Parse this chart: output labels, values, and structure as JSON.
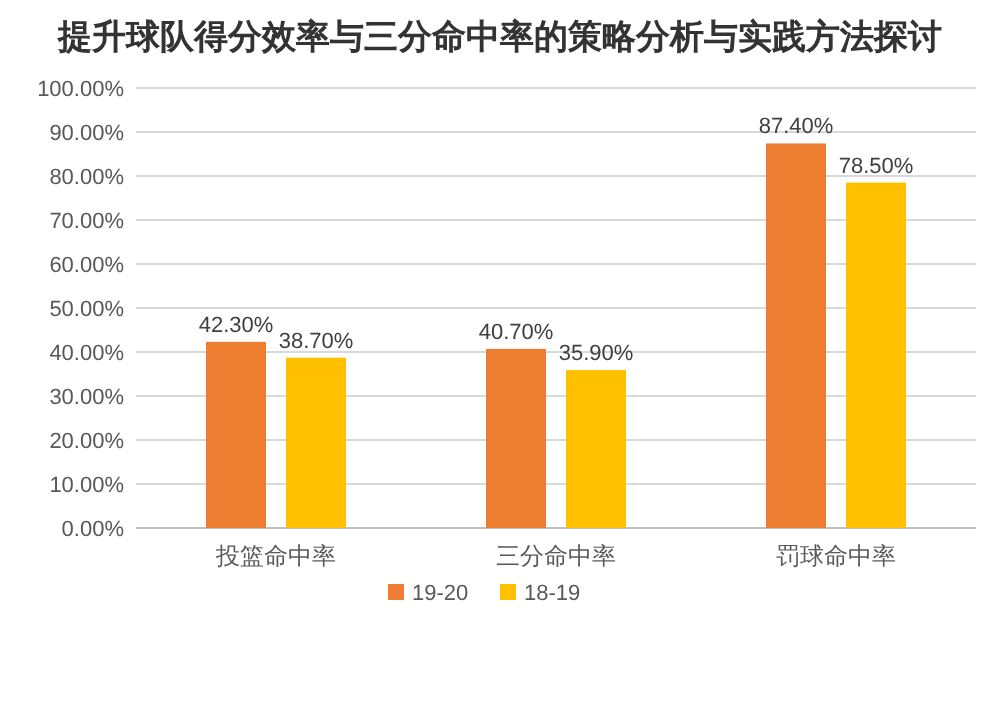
{
  "chart_data": {
    "type": "bar",
    "title": "提升球队得分效率与三分命中率的策略分析与实践方法探讨",
    "categories": [
      "投篮命中率",
      "三分命中率",
      "罚球命中率"
    ],
    "series": [
      {
        "name": "19-20",
        "color": "#ed7d31",
        "values": [
          42.3,
          40.7,
          87.4
        ],
        "value_labels": [
          "42.30%",
          "40.70%",
          "87.40%"
        ]
      },
      {
        "name": "18-19",
        "color": "#ffc000",
        "values": [
          38.7,
          35.9,
          78.5
        ],
        "value_labels": [
          "38.70%",
          "35.90%",
          "78.50%"
        ]
      }
    ],
    "ylim": [
      0,
      100
    ],
    "yticks": [
      {
        "value": 0,
        "label": "0.00%"
      },
      {
        "value": 10,
        "label": "10.00%"
      },
      {
        "value": 20,
        "label": "20.00%"
      },
      {
        "value": 30,
        "label": "30.00%"
      },
      {
        "value": 40,
        "label": "40.00%"
      },
      {
        "value": 50,
        "label": "50.00%"
      },
      {
        "value": 60,
        "label": "60.00%"
      },
      {
        "value": 70,
        "label": "70.00%"
      },
      {
        "value": 80,
        "label": "80.00%"
      },
      {
        "value": 90,
        "label": "90.00%"
      },
      {
        "value": 100,
        "label": "100.00%"
      }
    ],
    "grid": "y",
    "legend": "bottom"
  }
}
